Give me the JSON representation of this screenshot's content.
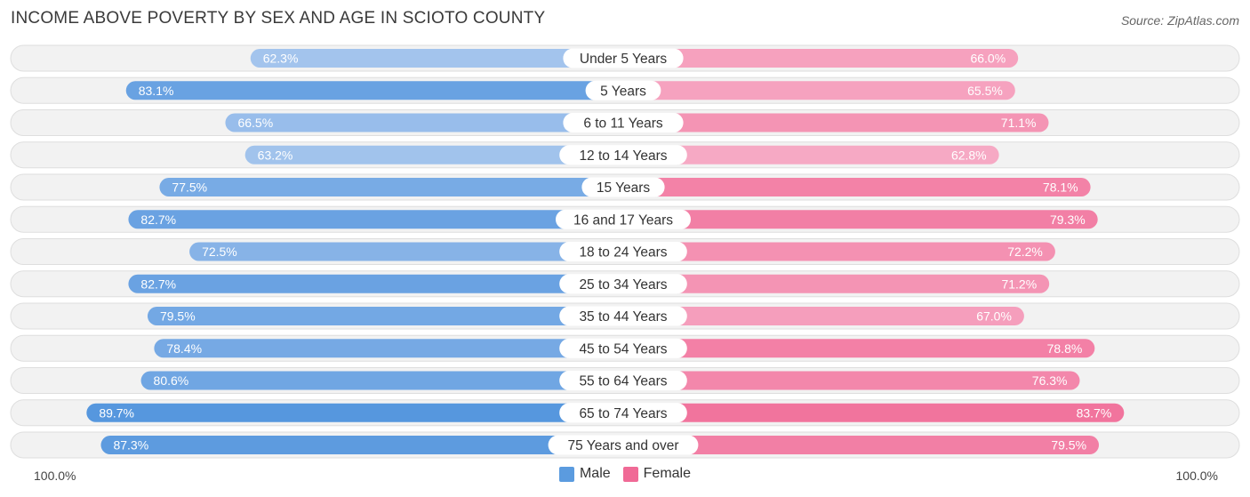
{
  "title": "INCOME ABOVE POVERTY BY SEX AND AGE IN SCIOTO COUNTY",
  "source": "Source: ZipAtlas.com",
  "axis": {
    "left_label": "100.0%",
    "right_label": "100.0%"
  },
  "legend": [
    {
      "name": "Male",
      "color": "#5b9bdf"
    },
    {
      "name": "Female",
      "color": "#f06a96"
    }
  ],
  "chart_data": {
    "type": "bar",
    "orientation": "horizontal-diverging",
    "title": "INCOME ABOVE POVERTY BY SEX AND AGE IN SCIOTO COUNTY",
    "xlim": [
      0,
      100
    ],
    "unit": "%",
    "categories": [
      "Under 5 Years",
      "5 Years",
      "6 to 11 Years",
      "12 to 14 Years",
      "15 Years",
      "16 and 17 Years",
      "18 to 24 Years",
      "25 to 34 Years",
      "35 to 44 Years",
      "45 to 54 Years",
      "55 to 64 Years",
      "65 to 74 Years",
      "75 Years and over"
    ],
    "series": [
      {
        "name": "Male",
        "values": [
          62.3,
          83.1,
          66.5,
          63.2,
          77.5,
          82.7,
          72.5,
          82.7,
          79.5,
          78.4,
          80.6,
          89.7,
          87.3
        ]
      },
      {
        "name": "Female",
        "values": [
          66.0,
          65.5,
          71.1,
          62.8,
          78.1,
          79.3,
          72.2,
          71.2,
          67.0,
          78.8,
          76.3,
          83.7,
          79.5
        ]
      }
    ]
  }
}
